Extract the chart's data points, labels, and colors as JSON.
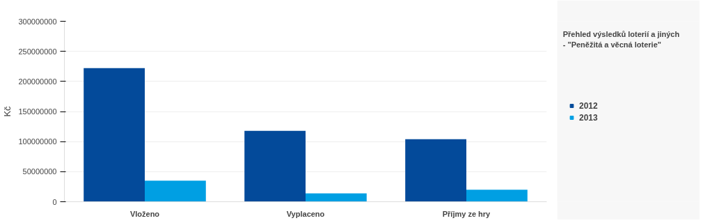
{
  "chart_data": {
    "type": "bar",
    "title": "Přehled výsledků loterií a jiných\n- \"Peněžitá a věcná loterie\"",
    "ylabel": "Kč",
    "categories": [
      "Vloženo",
      "Vyplaceno",
      "Příjmy ze hry"
    ],
    "series": [
      {
        "name": "2012",
        "color": "#034a9a",
        "values": [
          222000000,
          118000000,
          104000000
        ]
      },
      {
        "name": "2013",
        "color": "#009fe3",
        "values": [
          35000000,
          14000000,
          20000000
        ]
      }
    ],
    "ylim": [
      0,
      300000000
    ],
    "yticks": [
      0,
      50000000,
      100000000,
      150000000,
      200000000,
      250000000,
      300000000
    ],
    "grid": "y",
    "legend": "right"
  }
}
